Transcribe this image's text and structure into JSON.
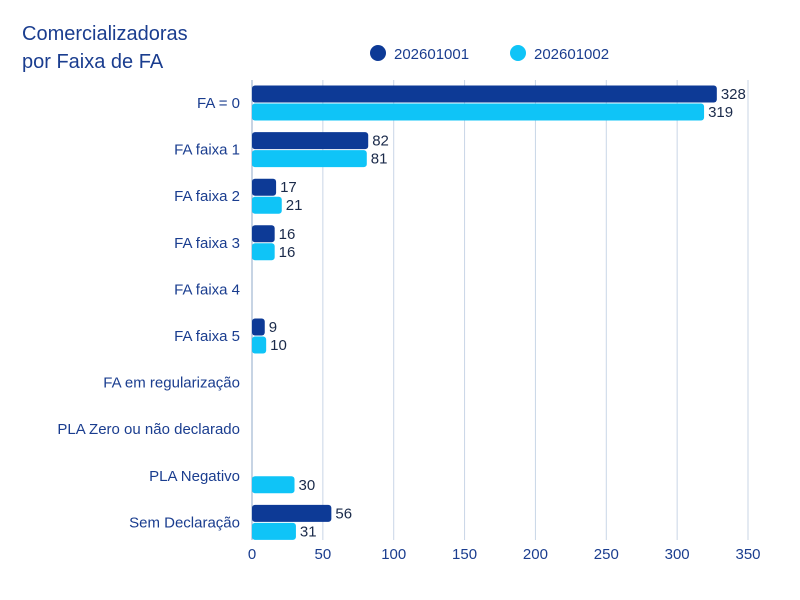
{
  "chart_data": {
    "type": "bar",
    "orientation": "horizontal",
    "title_lines": [
      "Comercializadoras",
      "por Faixa de FA"
    ],
    "categories": [
      "FA = 0",
      "FA faixa 1",
      "FA faixa 2",
      "FA faixa 3",
      "FA faixa 4",
      "FA faixa 5",
      "FA em regularização",
      "PLA Zero ou não declarado",
      "PLA Negativo",
      "Sem Declaração"
    ],
    "series": [
      {
        "name": "202601001",
        "color": "#0d3a96",
        "values": [
          328,
          82,
          17,
          16,
          null,
          9,
          null,
          null,
          null,
          56
        ]
      },
      {
        "name": "202601002",
        "color": "#0fc4f7",
        "values": [
          319,
          81,
          21,
          16,
          null,
          10,
          null,
          null,
          30,
          31
        ]
      }
    ],
    "xlim": [
      0,
      350
    ],
    "xticks": [
      0,
      50,
      100,
      150,
      200,
      250,
      300,
      350
    ],
    "grid": true,
    "legend_position": "top"
  }
}
